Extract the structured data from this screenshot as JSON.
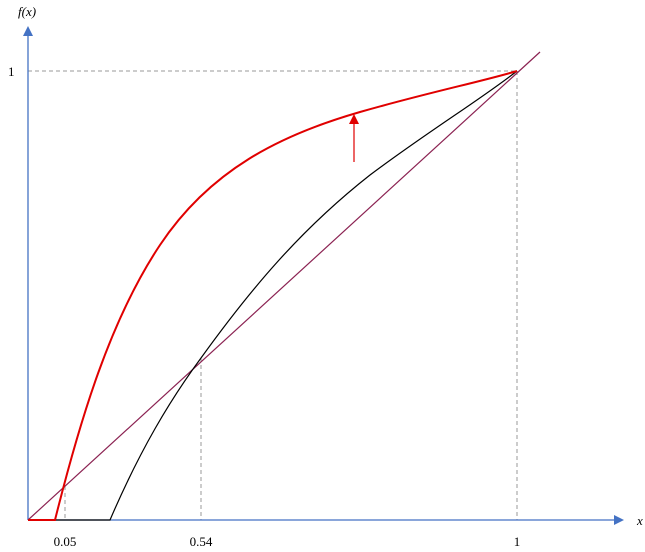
{
  "y_axis_label": "f(x)",
  "x_axis_label": "x",
  "x_ticks": [
    "0.05",
    "0.54",
    "1"
  ],
  "y_ticks": [
    "1"
  ]
}
